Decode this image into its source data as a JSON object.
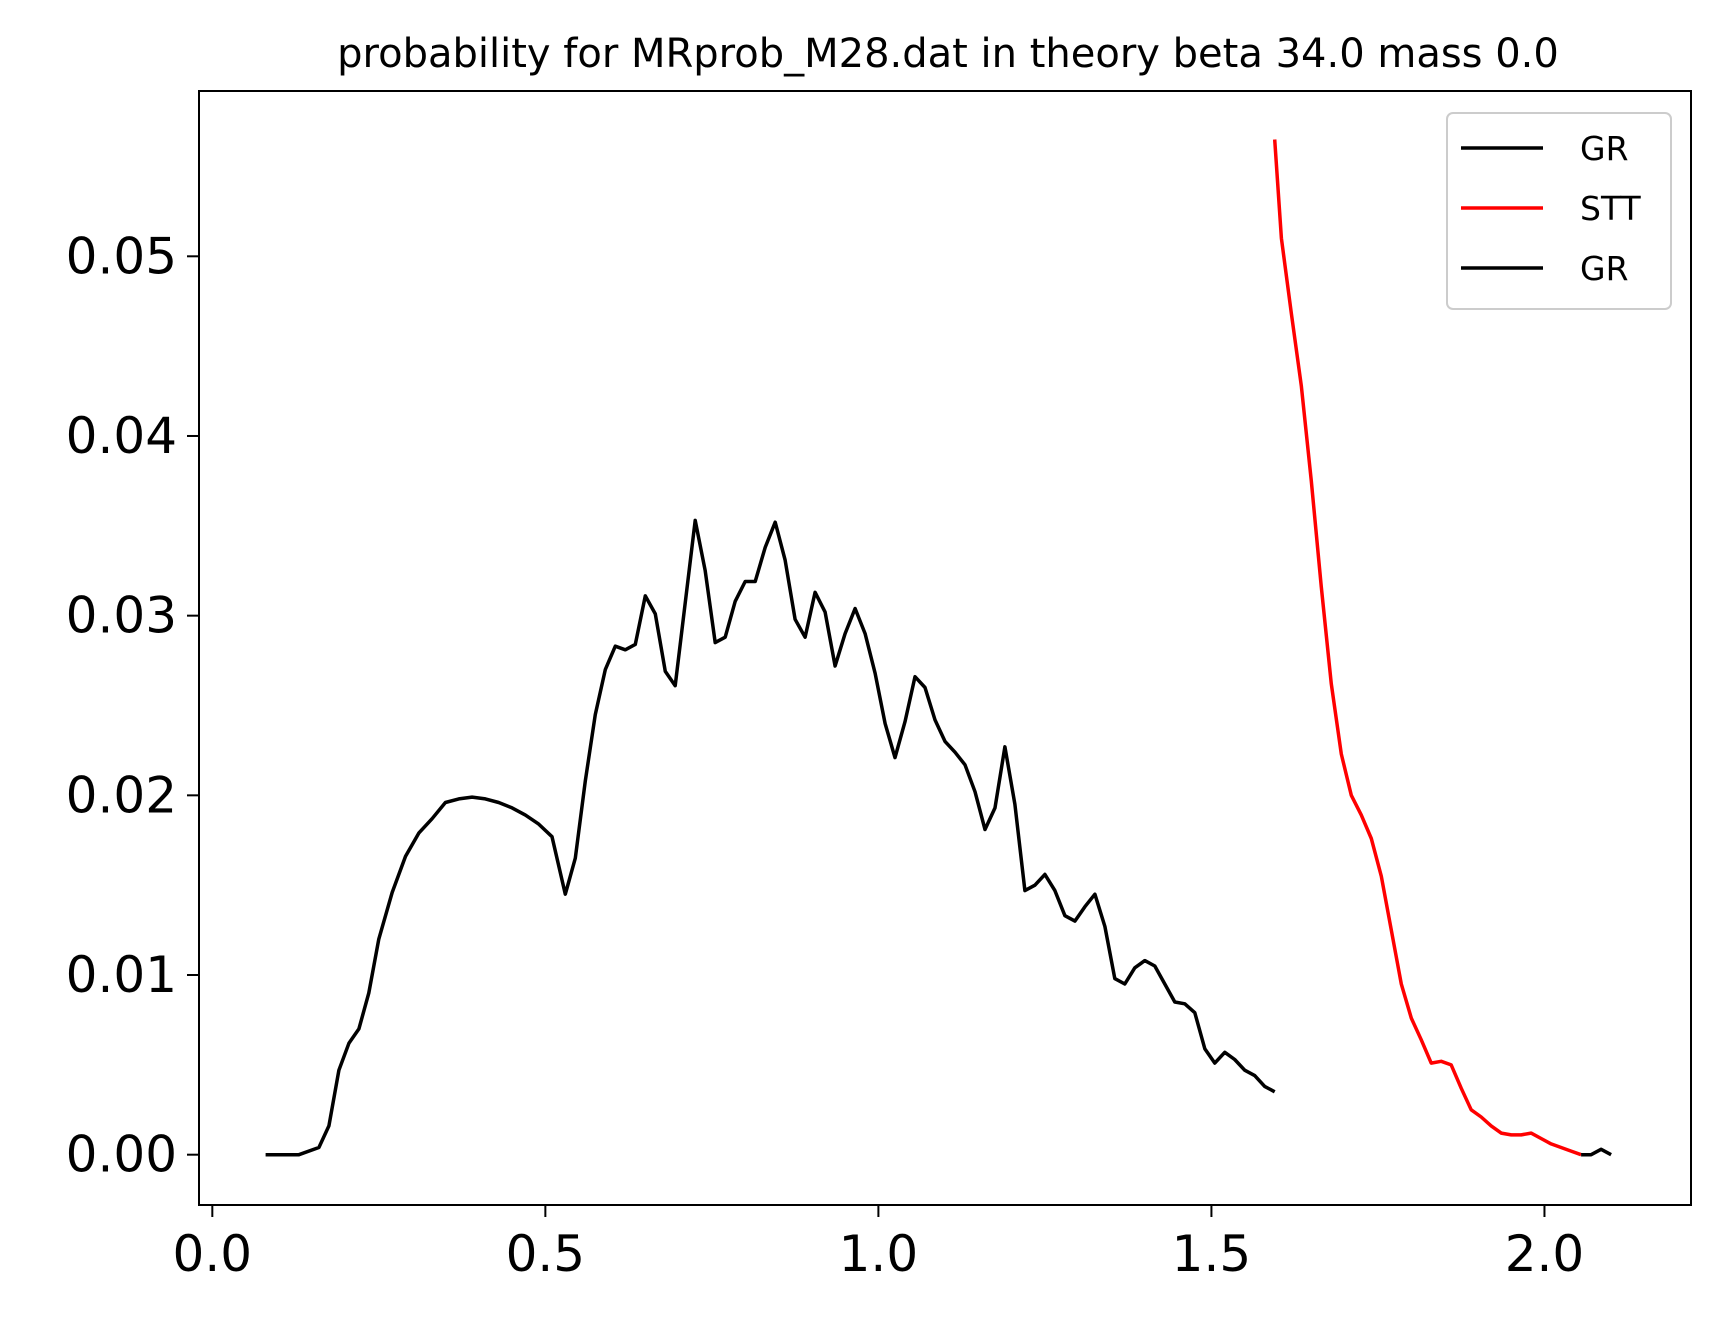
{
  "chart_data": {
    "type": "line",
    "title": "probability for MRprob_M28.dat in theory beta 34.0 mass 0.0",
    "xlabel": "",
    "ylabel": "",
    "xlim": [
      -0.02,
      2.22
    ],
    "ylim": [
      -0.0028,
      0.0592
    ],
    "x_ticks": [
      0.0,
      0.5,
      1.0,
      1.5,
      2.0
    ],
    "x_tick_labels": [
      "0.0",
      "0.5",
      "1.0",
      "1.5",
      "2.0"
    ],
    "y_ticks": [
      0.0,
      0.01,
      0.02,
      0.03,
      0.04,
      0.05
    ],
    "y_tick_labels": [
      "0.00",
      "0.01",
      "0.02",
      "0.03",
      "0.04",
      "0.05"
    ],
    "grid": false,
    "legend_position": "top-right",
    "legend": [
      {
        "label": "GR",
        "color": "#000000"
      },
      {
        "label": "STT",
        "color": "#ff0000"
      },
      {
        "label": "GR",
        "color": "#000000"
      }
    ],
    "series": [
      {
        "name": "GR",
        "color": "#000000",
        "points": [
          [
            0.08,
            0.0
          ],
          [
            0.13,
            0.0
          ],
          [
            0.16,
            0.0004
          ],
          [
            0.175,
            0.0016
          ],
          [
            0.19,
            0.0047
          ],
          [
            0.205,
            0.0062
          ],
          [
            0.22,
            0.007
          ],
          [
            0.235,
            0.009
          ],
          [
            0.25,
            0.012
          ],
          [
            0.27,
            0.0146
          ],
          [
            0.29,
            0.0166
          ],
          [
            0.31,
            0.0179
          ],
          [
            0.33,
            0.0187
          ],
          [
            0.35,
            0.0196
          ],
          [
            0.37,
            0.0198
          ],
          [
            0.39,
            0.0199
          ],
          [
            0.41,
            0.0198
          ],
          [
            0.43,
            0.0196
          ],
          [
            0.45,
            0.0193
          ],
          [
            0.47,
            0.0189
          ],
          [
            0.49,
            0.0184
          ],
          [
            0.51,
            0.0177
          ],
          [
            0.53,
            0.0145
          ],
          [
            0.545,
            0.0165
          ],
          [
            0.56,
            0.0208
          ],
          [
            0.575,
            0.0245
          ],
          [
            0.59,
            0.027
          ],
          [
            0.605,
            0.0283
          ],
          [
            0.62,
            0.0281
          ],
          [
            0.635,
            0.0284
          ],
          [
            0.65,
            0.0311
          ],
          [
            0.665,
            0.0301
          ],
          [
            0.68,
            0.0269
          ],
          [
            0.695,
            0.0261
          ],
          [
            0.71,
            0.0307
          ],
          [
            0.725,
            0.0353
          ],
          [
            0.74,
            0.0325
          ],
          [
            0.755,
            0.0285
          ],
          [
            0.77,
            0.0288
          ],
          [
            0.785,
            0.0308
          ],
          [
            0.8,
            0.0319
          ],
          [
            0.815,
            0.0319
          ],
          [
            0.83,
            0.0338
          ],
          [
            0.845,
            0.0352
          ],
          [
            0.86,
            0.0331
          ],
          [
            0.875,
            0.0298
          ],
          [
            0.89,
            0.0288
          ],
          [
            0.905,
            0.0313
          ],
          [
            0.92,
            0.0302
          ],
          [
            0.935,
            0.0272
          ],
          [
            0.95,
            0.029
          ],
          [
            0.965,
            0.0304
          ],
          [
            0.98,
            0.029
          ],
          [
            0.995,
            0.0268
          ],
          [
            1.01,
            0.024
          ],
          [
            1.025,
            0.0221
          ],
          [
            1.04,
            0.0241
          ],
          [
            1.055,
            0.0266
          ],
          [
            1.07,
            0.026
          ],
          [
            1.085,
            0.0242
          ],
          [
            1.1,
            0.023
          ],
          [
            1.115,
            0.0224
          ],
          [
            1.13,
            0.0217
          ],
          [
            1.145,
            0.0202
          ],
          [
            1.16,
            0.0181
          ],
          [
            1.175,
            0.0193
          ],
          [
            1.19,
            0.0227
          ],
          [
            1.205,
            0.0195
          ],
          [
            1.22,
            0.0147
          ],
          [
            1.235,
            0.015
          ],
          [
            1.25,
            0.0156
          ],
          [
            1.265,
            0.0147
          ],
          [
            1.28,
            0.0133
          ],
          [
            1.295,
            0.013
          ],
          [
            1.31,
            0.0138
          ],
          [
            1.325,
            0.0145
          ],
          [
            1.34,
            0.0127
          ],
          [
            1.355,
            0.0098
          ],
          [
            1.37,
            0.0095
          ],
          [
            1.385,
            0.0104
          ],
          [
            1.4,
            0.0108
          ],
          [
            1.415,
            0.0105
          ],
          [
            1.43,
            0.0095
          ],
          [
            1.445,
            0.0085
          ],
          [
            1.46,
            0.0084
          ],
          [
            1.475,
            0.0079
          ],
          [
            1.49,
            0.0059
          ],
          [
            1.505,
            0.0051
          ],
          [
            1.52,
            0.0057
          ],
          [
            1.535,
            0.0053
          ],
          [
            1.55,
            0.0047
          ],
          [
            1.565,
            0.0044
          ],
          [
            1.58,
            0.0038
          ],
          [
            1.595,
            0.0035
          ]
        ]
      },
      {
        "name": "STT",
        "color": "#ff0000",
        "points": [
          [
            1.595,
            0.0565
          ],
          [
            1.605,
            0.051
          ],
          [
            1.62,
            0.0468
          ],
          [
            1.635,
            0.0428
          ],
          [
            1.65,
            0.0375
          ],
          [
            1.665,
            0.0316
          ],
          [
            1.68,
            0.0262
          ],
          [
            1.695,
            0.0223
          ],
          [
            1.71,
            0.02
          ],
          [
            1.725,
            0.0189
          ],
          [
            1.74,
            0.0176
          ],
          [
            1.755,
            0.0155
          ],
          [
            1.77,
            0.0125
          ],
          [
            1.785,
            0.0095
          ],
          [
            1.8,
            0.0076
          ],
          [
            1.815,
            0.0064
          ],
          [
            1.83,
            0.0051
          ],
          [
            1.845,
            0.0052
          ],
          [
            1.86,
            0.005
          ],
          [
            1.875,
            0.0037
          ],
          [
            1.89,
            0.0025
          ],
          [
            1.905,
            0.0021
          ],
          [
            1.92,
            0.0016
          ],
          [
            1.935,
            0.0012
          ],
          [
            1.95,
            0.0011
          ],
          [
            1.965,
            0.0011
          ],
          [
            1.98,
            0.0012
          ],
          [
            1.995,
            0.0009
          ],
          [
            2.01,
            0.0006
          ],
          [
            2.025,
            0.0004
          ],
          [
            2.04,
            0.0002
          ],
          [
            2.055,
            0.0
          ]
        ]
      },
      {
        "name": "GR",
        "color": "#000000",
        "points": [
          [
            2.055,
            0.0
          ],
          [
            2.07,
            0.0
          ],
          [
            2.085,
            0.0003
          ],
          [
            2.1,
            0.0
          ]
        ]
      }
    ]
  }
}
